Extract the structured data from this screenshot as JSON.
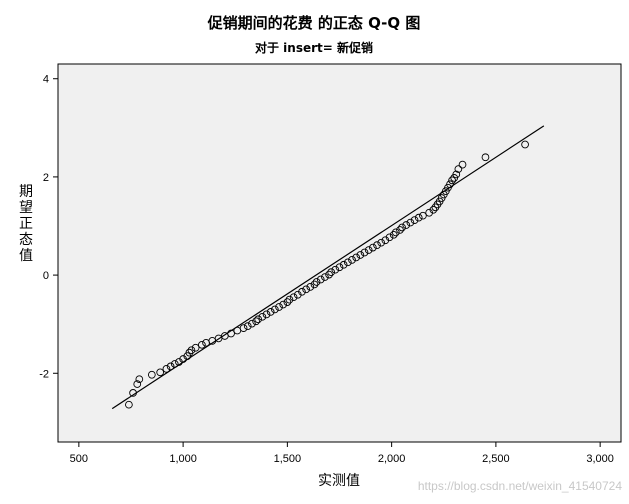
{
  "chart_data": {
    "type": "scatter",
    "title": "促销期间的花费 的正态 Q-Q 图",
    "subtitle": "对于 insert= 新促销",
    "xlabel": "实测值",
    "ylabel": "期望正态值",
    "xlim": [
      400,
      3100
    ],
    "ylim": [
      -3.4,
      4.3
    ],
    "x_ticks": [
      500,
      1000,
      1500,
      2000,
      2500,
      3000
    ],
    "x_tick_labels": [
      "500",
      "1,000",
      "1,500",
      "2,000",
      "2,500",
      "3,000"
    ],
    "y_ticks": [
      -2,
      0,
      2,
      4
    ],
    "y_tick_labels": [
      "-2",
      "0",
      "2",
      "4"
    ],
    "grid": false,
    "reference_line": {
      "x": [
        660,
        2730
      ],
      "y": [
        -2.72,
        3.04
      ]
    },
    "points": [
      [
        740,
        -2.64
      ],
      [
        760,
        -2.4
      ],
      [
        780,
        -2.22
      ],
      [
        790,
        -2.12
      ],
      [
        850,
        -2.03
      ],
      [
        890,
        -1.98
      ],
      [
        920,
        -1.91
      ],
      [
        940,
        -1.86
      ],
      [
        960,
        -1.81
      ],
      [
        980,
        -1.77
      ],
      [
        1000,
        -1.71
      ],
      [
        1020,
        -1.65
      ],
      [
        1030,
        -1.58
      ],
      [
        1040,
        -1.53
      ],
      [
        1060,
        -1.48
      ],
      [
        1090,
        -1.42
      ],
      [
        1110,
        -1.38
      ],
      [
        1140,
        -1.34
      ],
      [
        1170,
        -1.29
      ],
      [
        1200,
        -1.24
      ],
      [
        1230,
        -1.19
      ],
      [
        1260,
        -1.13
      ],
      [
        1290,
        -1.08
      ],
      [
        1310,
        -1.04
      ],
      [
        1330,
        -0.99
      ],
      [
        1350,
        -0.94
      ],
      [
        1360,
        -0.9
      ],
      [
        1380,
        -0.85
      ],
      [
        1400,
        -0.8
      ],
      [
        1420,
        -0.75
      ],
      [
        1440,
        -0.7
      ],
      [
        1460,
        -0.65
      ],
      [
        1480,
        -0.6
      ],
      [
        1500,
        -0.55
      ],
      [
        1510,
        -0.5
      ],
      [
        1530,
        -0.45
      ],
      [
        1550,
        -0.4
      ],
      [
        1570,
        -0.34
      ],
      [
        1590,
        -0.29
      ],
      [
        1610,
        -0.24
      ],
      [
        1630,
        -0.19
      ],
      [
        1640,
        -0.14
      ],
      [
        1660,
        -0.09
      ],
      [
        1680,
        -0.04
      ],
      [
        1700,
        0.01
      ],
      [
        1710,
        0.06
      ],
      [
        1730,
        0.11
      ],
      [
        1750,
        0.16
      ],
      [
        1770,
        0.21
      ],
      [
        1790,
        0.26
      ],
      [
        1810,
        0.31
      ],
      [
        1830,
        0.36
      ],
      [
        1850,
        0.41
      ],
      [
        1870,
        0.46
      ],
      [
        1890,
        0.51
      ],
      [
        1910,
        0.56
      ],
      [
        1930,
        0.61
      ],
      [
        1950,
        0.66
      ],
      [
        1970,
        0.71
      ],
      [
        1990,
        0.77
      ],
      [
        2010,
        0.82
      ],
      [
        2020,
        0.87
      ],
      [
        2040,
        0.92
      ],
      [
        2050,
        0.97
      ],
      [
        2070,
        1.02
      ],
      [
        2090,
        1.07
      ],
      [
        2110,
        1.12
      ],
      [
        2130,
        1.17
      ],
      [
        2150,
        1.21
      ],
      [
        2180,
        1.27
      ],
      [
        2200,
        1.33
      ],
      [
        2210,
        1.38
      ],
      [
        2220,
        1.44
      ],
      [
        2230,
        1.5
      ],
      [
        2240,
        1.57
      ],
      [
        2250,
        1.64
      ],
      [
        2260,
        1.71
      ],
      [
        2270,
        1.78
      ],
      [
        2280,
        1.85
      ],
      [
        2290,
        1.93
      ],
      [
        2300,
        1.98
      ],
      [
        2310,
        2.05
      ],
      [
        2320,
        2.16
      ],
      [
        2340,
        2.25
      ],
      [
        2450,
        2.4
      ],
      [
        2640,
        2.66
      ]
    ]
  },
  "watermark": "https://blog.csdn.net/weixin_41540724"
}
